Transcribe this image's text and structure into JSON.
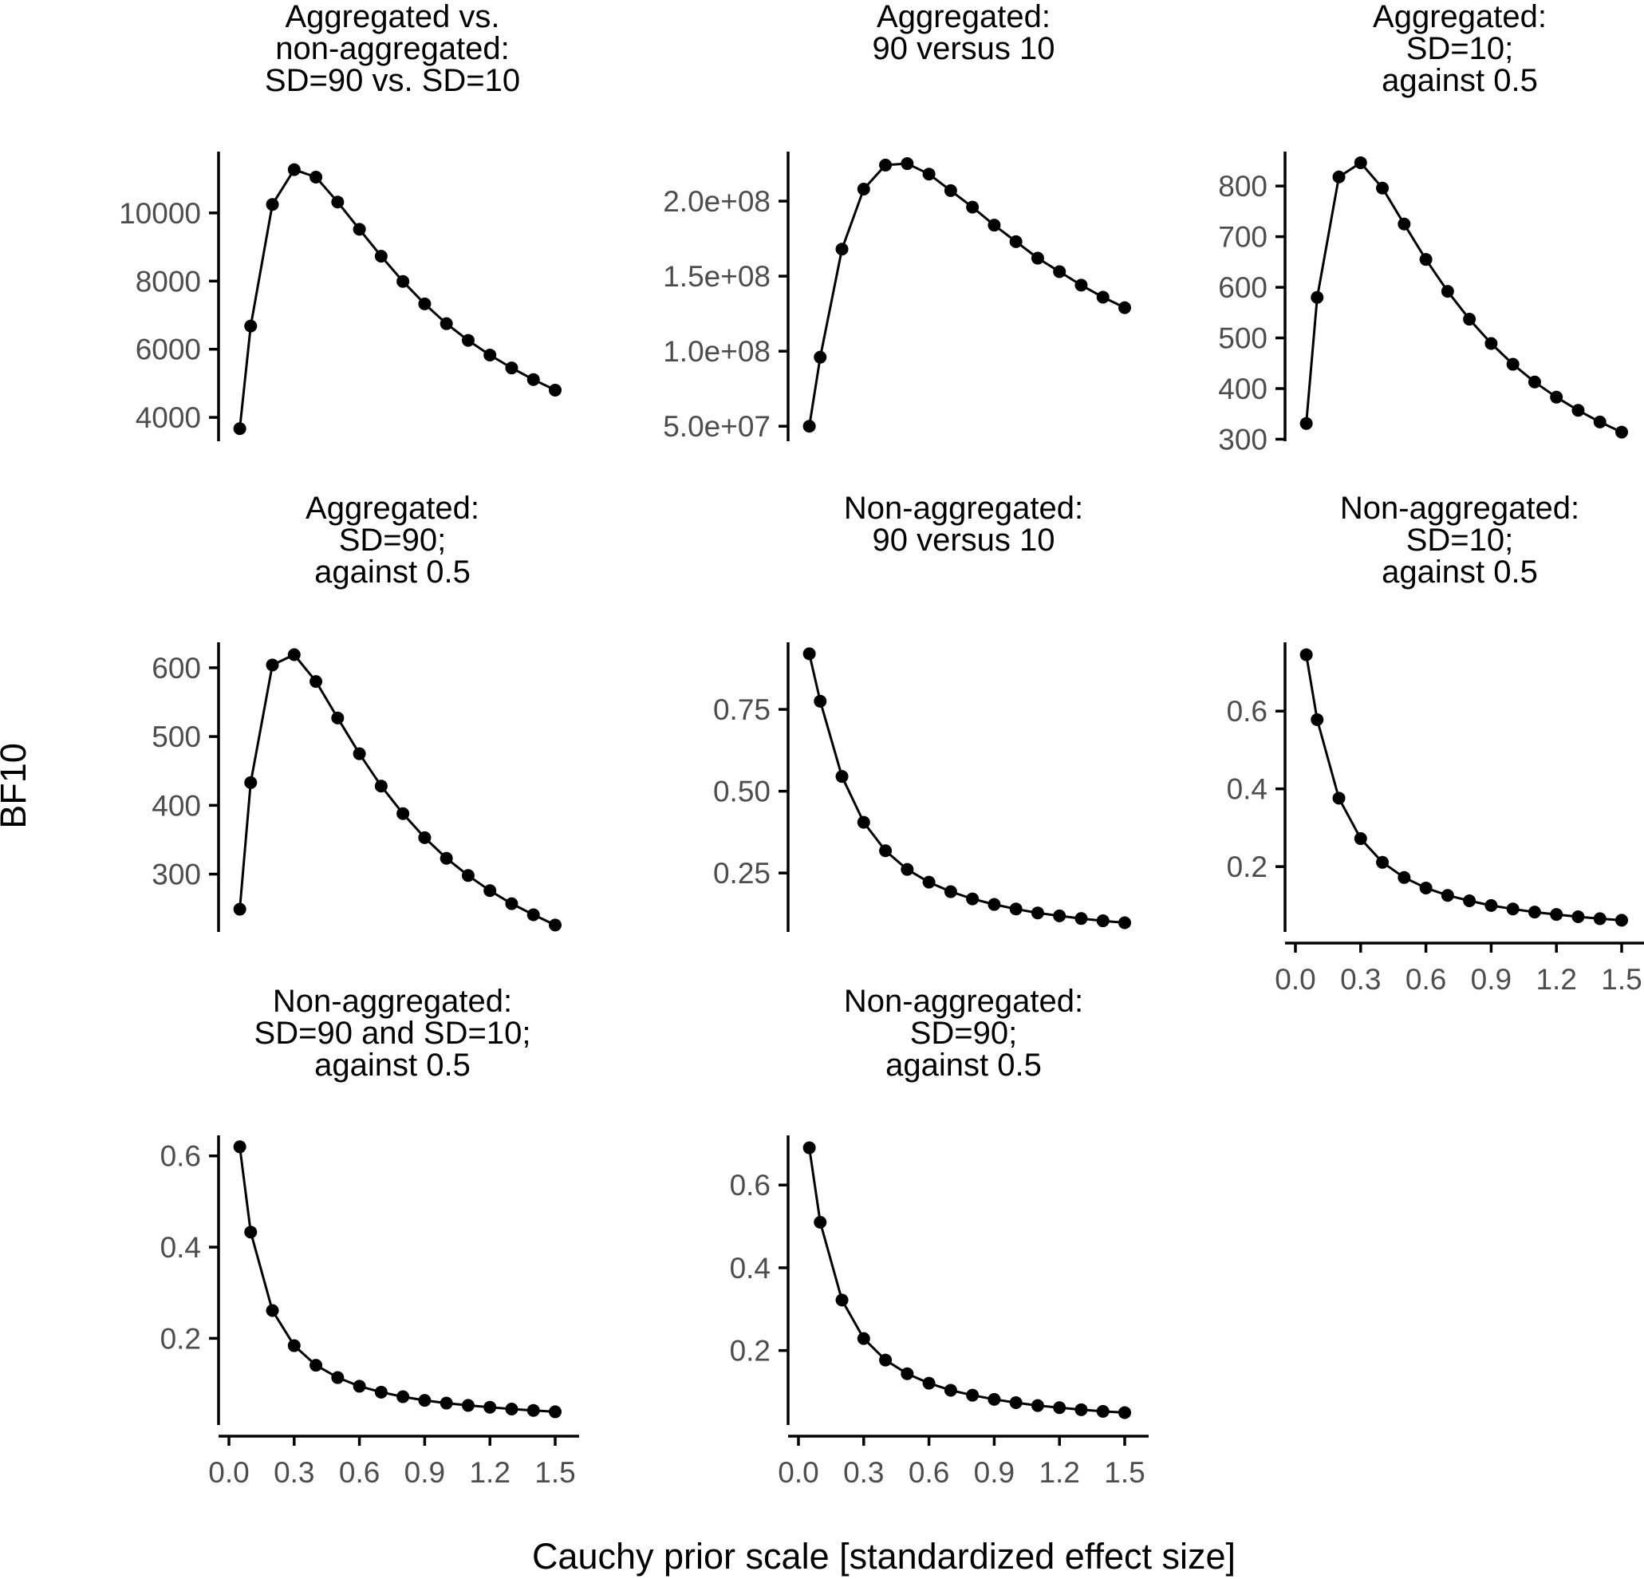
{
  "figure": {
    "ylabel": "BF10",
    "xlabel": "Cauchy prior scale [standardized effect size]"
  },
  "chart_data": [
    {
      "type": "line",
      "title_lines": [
        "Aggregated vs.",
        "non-aggregated:",
        "SD=90 vs. SD=10"
      ],
      "x": [
        0.05,
        0.1,
        0.2,
        0.3,
        0.4,
        0.5,
        0.6,
        0.7,
        0.8,
        0.9,
        1.0,
        1.1,
        1.2,
        1.3,
        1.4,
        1.5
      ],
      "y": [
        3670,
        6680,
        10250,
        11270,
        11050,
        10320,
        9520,
        8730,
        7990,
        7330,
        6750,
        6260,
        5830,
        5450,
        5110,
        4800
      ],
      "yticks": [
        4000,
        6000,
        8000,
        10000
      ],
      "ytick_labels": [
        "4000",
        "6000",
        "8000",
        "10000"
      ],
      "ylim": [
        3300,
        11800
      ],
      "show_xaxis": false
    },
    {
      "type": "line",
      "title_lines": [
        "Aggregated:",
        "90 versus 10"
      ],
      "x": [
        0.05,
        0.1,
        0.2,
        0.3,
        0.4,
        0.5,
        0.6,
        0.7,
        0.8,
        0.9,
        1.0,
        1.1,
        1.2,
        1.3,
        1.4,
        1.5
      ],
      "y": [
        50000000,
        96000000,
        168000000,
        208000000,
        224000000,
        225000000,
        218000000,
        207000000,
        196000000,
        184000000,
        173000000,
        162000000,
        153000000,
        144000000,
        136000000,
        129000000
      ],
      "yticks": [
        50000000,
        100000000,
        150000000,
        200000000
      ],
      "ytick_labels": [
        "5.0e+07",
        "1.0e+08",
        "1.5e+08",
        "2.0e+08"
      ],
      "ylim": [
        40000000,
        233000000
      ],
      "show_xaxis": false
    },
    {
      "type": "line",
      "title_lines": [
        "Aggregated:",
        "SD=10;",
        "against 0.5"
      ],
      "x": [
        0.05,
        0.1,
        0.2,
        0.3,
        0.4,
        0.5,
        0.6,
        0.7,
        0.8,
        0.9,
        1.0,
        1.1,
        1.2,
        1.3,
        1.4,
        1.5
      ],
      "y": [
        331,
        580,
        818,
        846,
        796,
        725,
        655,
        592,
        537,
        489,
        448,
        413,
        383,
        357,
        334,
        314
      ],
      "yticks": [
        300,
        400,
        500,
        600,
        700,
        800
      ],
      "ytick_labels": [
        "300",
        "400",
        "500",
        "600",
        "700",
        "800"
      ],
      "ylim": [
        296,
        868
      ],
      "show_xaxis": false
    },
    {
      "type": "line",
      "title_lines": [
        "Aggregated:",
        "SD=90;",
        "against 0.5"
      ],
      "x": [
        0.05,
        0.1,
        0.2,
        0.3,
        0.4,
        0.5,
        0.6,
        0.7,
        0.8,
        0.9,
        1.0,
        1.1,
        1.2,
        1.3,
        1.4,
        1.5
      ],
      "y": [
        249,
        433,
        604,
        619,
        580,
        527,
        475,
        428,
        388,
        353,
        323,
        298,
        276,
        257,
        241,
        226
      ],
      "yticks": [
        300,
        400,
        500,
        600
      ],
      "ytick_labels": [
        "300",
        "400",
        "500",
        "600"
      ],
      "ylim": [
        216,
        637
      ],
      "show_xaxis": false
    },
    {
      "type": "line",
      "title_lines": [
        "Non-aggregated:",
        "90 versus 10"
      ],
      "x": [
        0.05,
        0.1,
        0.2,
        0.3,
        0.4,
        0.5,
        0.6,
        0.7,
        0.8,
        0.9,
        1.0,
        1.1,
        1.2,
        1.3,
        1.4,
        1.5
      ],
      "y": [
        0.92,
        0.775,
        0.545,
        0.405,
        0.318,
        0.261,
        0.222,
        0.193,
        0.171,
        0.154,
        0.14,
        0.128,
        0.119,
        0.111,
        0.104,
        0.098
      ],
      "yticks": [
        0.25,
        0.5,
        0.75
      ],
      "ytick_labels": [
        "0.25",
        "0.50",
        "0.75"
      ],
      "ylim": [
        0.07,
        0.955
      ],
      "show_xaxis": false
    },
    {
      "type": "line",
      "title_lines": [
        "Non-aggregated:",
        "SD=10;",
        "against 0.5"
      ],
      "x": [
        0.05,
        0.1,
        0.2,
        0.3,
        0.4,
        0.5,
        0.6,
        0.7,
        0.8,
        0.9,
        1.0,
        1.1,
        1.2,
        1.3,
        1.4,
        1.5
      ],
      "y": [
        0.745,
        0.578,
        0.376,
        0.272,
        0.211,
        0.172,
        0.145,
        0.126,
        0.112,
        0.1,
        0.091,
        0.083,
        0.077,
        0.071,
        0.066,
        0.062
      ],
      "yticks": [
        0.2,
        0.4,
        0.6
      ],
      "ytick_labels": [
        "0.2",
        "0.4",
        "0.6"
      ],
      "ylim": [
        0.032,
        0.777
      ],
      "show_xaxis": true,
      "xticks": [
        0.0,
        0.3,
        0.6,
        0.9,
        1.2,
        1.5
      ],
      "xtick_labels": [
        "0.0",
        "0.3",
        "0.6",
        "0.9",
        "1.2",
        "1.5"
      ],
      "xlim": [
        0.0,
        1.5
      ]
    },
    {
      "type": "line",
      "title_lines": [
        "Non-aggregated:",
        "SD=90 and SD=10;",
        "against 0.5"
      ],
      "x": [
        0.05,
        0.1,
        0.2,
        0.3,
        0.4,
        0.5,
        0.6,
        0.7,
        0.8,
        0.9,
        1.0,
        1.1,
        1.2,
        1.3,
        1.4,
        1.5
      ],
      "y": [
        0.62,
        0.433,
        0.261,
        0.184,
        0.141,
        0.114,
        0.095,
        0.082,
        0.072,
        0.064,
        0.058,
        0.053,
        0.049,
        0.045,
        0.042,
        0.039
      ],
      "yticks": [
        0.2,
        0.4,
        0.6
      ],
      "ytick_labels": [
        "0.2",
        "0.4",
        "0.6"
      ],
      "ylim": [
        0.01,
        0.645
      ],
      "show_xaxis": true,
      "xticks": [
        0.0,
        0.3,
        0.6,
        0.9,
        1.2,
        1.5
      ],
      "xtick_labels": [
        "0.0",
        "0.3",
        "0.6",
        "0.9",
        "1.2",
        "1.5"
      ],
      "xlim": [
        0.0,
        1.5
      ]
    },
    {
      "type": "line",
      "title_lines": [
        "Non-aggregated:",
        "SD=90;",
        "against 0.5"
      ],
      "x": [
        0.05,
        0.1,
        0.2,
        0.3,
        0.4,
        0.5,
        0.6,
        0.7,
        0.8,
        0.9,
        1.0,
        1.1,
        1.2,
        1.3,
        1.4,
        1.5
      ],
      "y": [
        0.69,
        0.51,
        0.322,
        0.229,
        0.177,
        0.144,
        0.121,
        0.104,
        0.092,
        0.082,
        0.074,
        0.067,
        0.062,
        0.057,
        0.053,
        0.05
      ],
      "yticks": [
        0.2,
        0.4,
        0.6
      ],
      "ytick_labels": [
        "0.2",
        "0.4",
        "0.6"
      ],
      "ylim": [
        0.02,
        0.72
      ],
      "show_xaxis": true,
      "xticks": [
        0.0,
        0.3,
        0.6,
        0.9,
        1.2,
        1.5
      ],
      "xtick_labels": [
        "0.0",
        "0.3",
        "0.6",
        "0.9",
        "1.2",
        "1.5"
      ],
      "xlim": [
        0.0,
        1.5
      ]
    }
  ]
}
